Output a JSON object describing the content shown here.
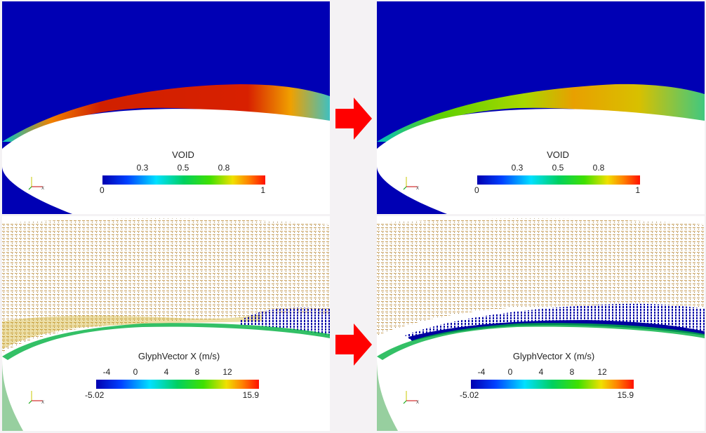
{
  "panels": {
    "void_before": {
      "legend_title": "VOID",
      "ticks_top": [
        "0.3",
        "0.5",
        "0.8"
      ],
      "range_min": "0",
      "range_max": "1"
    },
    "void_after": {
      "legend_title": "VOID",
      "ticks_top": [
        "0.3",
        "0.5",
        "0.8"
      ],
      "range_min": "0",
      "range_max": "1"
    },
    "glyph_before": {
      "legend_title": "GlyphVector X (m/s)",
      "ticks_top": [
        "-4",
        "0",
        "4",
        "8",
        "12"
      ],
      "range_min": "-5.02",
      "range_max": "15.9"
    },
    "glyph_after": {
      "legend_title": "GlyphVector X (m/s)",
      "ticks_top": [
        "-4",
        "0",
        "4",
        "8",
        "12"
      ],
      "range_min": "-5.02",
      "range_max": "15.9"
    }
  },
  "colors": {
    "background_blue": "#0000b4",
    "arrow_red": "#ff0000",
    "void_high": "#cc2200",
    "glyph_field": "#c8a050"
  },
  "icons": [
    "orientation-axes-icon",
    "right-arrow-icon"
  ]
}
